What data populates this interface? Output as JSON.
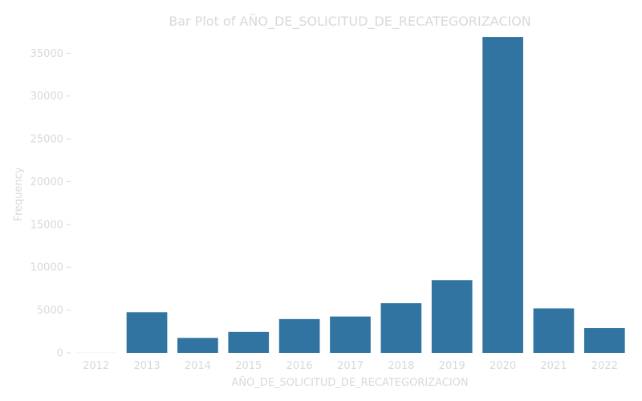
{
  "chart_data": {
    "type": "bar",
    "title": "Bar Plot of AÑO_DE_SOLICITUD_DE_RECATEGORIZACION",
    "xlabel": "AÑO_DE_SOLICITUD_DE_RECATEGORIZACION",
    "ylabel": "Frequency",
    "categories": [
      "2012",
      "2013",
      "2014",
      "2015",
      "2016",
      "2017",
      "2018",
      "2019",
      "2020",
      "2021",
      "2022"
    ],
    "values": [
      5,
      4750,
      1750,
      2450,
      3950,
      4250,
      5800,
      8500,
      36900,
      5200,
      2900
    ],
    "ylim": [
      0,
      37000
    ],
    "yticks": [
      0,
      5000,
      10000,
      15000,
      20000,
      25000,
      30000,
      35000
    ],
    "grid": false,
    "bar_color": "#3274a1"
  }
}
